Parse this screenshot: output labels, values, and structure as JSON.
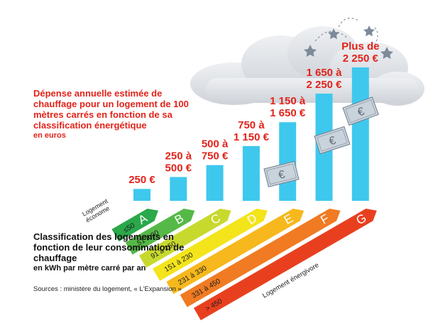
{
  "chart_data": {
    "type": "bar",
    "title": "Dépense annuelle estimée de chauffage pour un logement de 100 mètres carrés en fonction de sa classification énergétique",
    "unit": "en euros",
    "categories": [
      "A",
      "B",
      "C",
      "D",
      "E",
      "F",
      "G"
    ],
    "value_labels": [
      "250 €",
      "250 à 500 €",
      "500 à 750 €",
      "750 à 1 150 €",
      "1 150 à 1 650 €",
      "1 650 à 2 250 €",
      "Plus de 2 250 €"
    ],
    "values": [
      250,
      500,
      750,
      1150,
      1650,
      2250,
      2800
    ],
    "bar_color": "#3ec8ee",
    "label_color": "#e2231a"
  },
  "classification": {
    "title": "Classification des logements en fonction de leur consommation de chauffage",
    "unit": "en kWh par mètre carré par an",
    "low_label": "Logement économe",
    "high_label": "Logement énergivore",
    "classes": [
      {
        "letter": "A",
        "range": "≤50",
        "color": "#2aa84a"
      },
      {
        "letter": "B",
        "range": "51 à 90",
        "color": "#55b947"
      },
      {
        "letter": "C",
        "range": "91 à 150",
        "color": "#c8d92e"
      },
      {
        "letter": "D",
        "range": "151 à 230",
        "color": "#f3e41c"
      },
      {
        "letter": "E",
        "range": "231 à 330",
        "color": "#f6b81c"
      },
      {
        "letter": "F",
        "range": "331 à 450",
        "color": "#f07b22"
      },
      {
        "letter": "G",
        "range": "> 450",
        "color": "#e8401f"
      }
    ]
  },
  "sources": "Sources : ministère du logement, « L'Expansion »",
  "icons": [
    "euro-banknote-icon",
    "cloud-icon",
    "star-icon"
  ]
}
